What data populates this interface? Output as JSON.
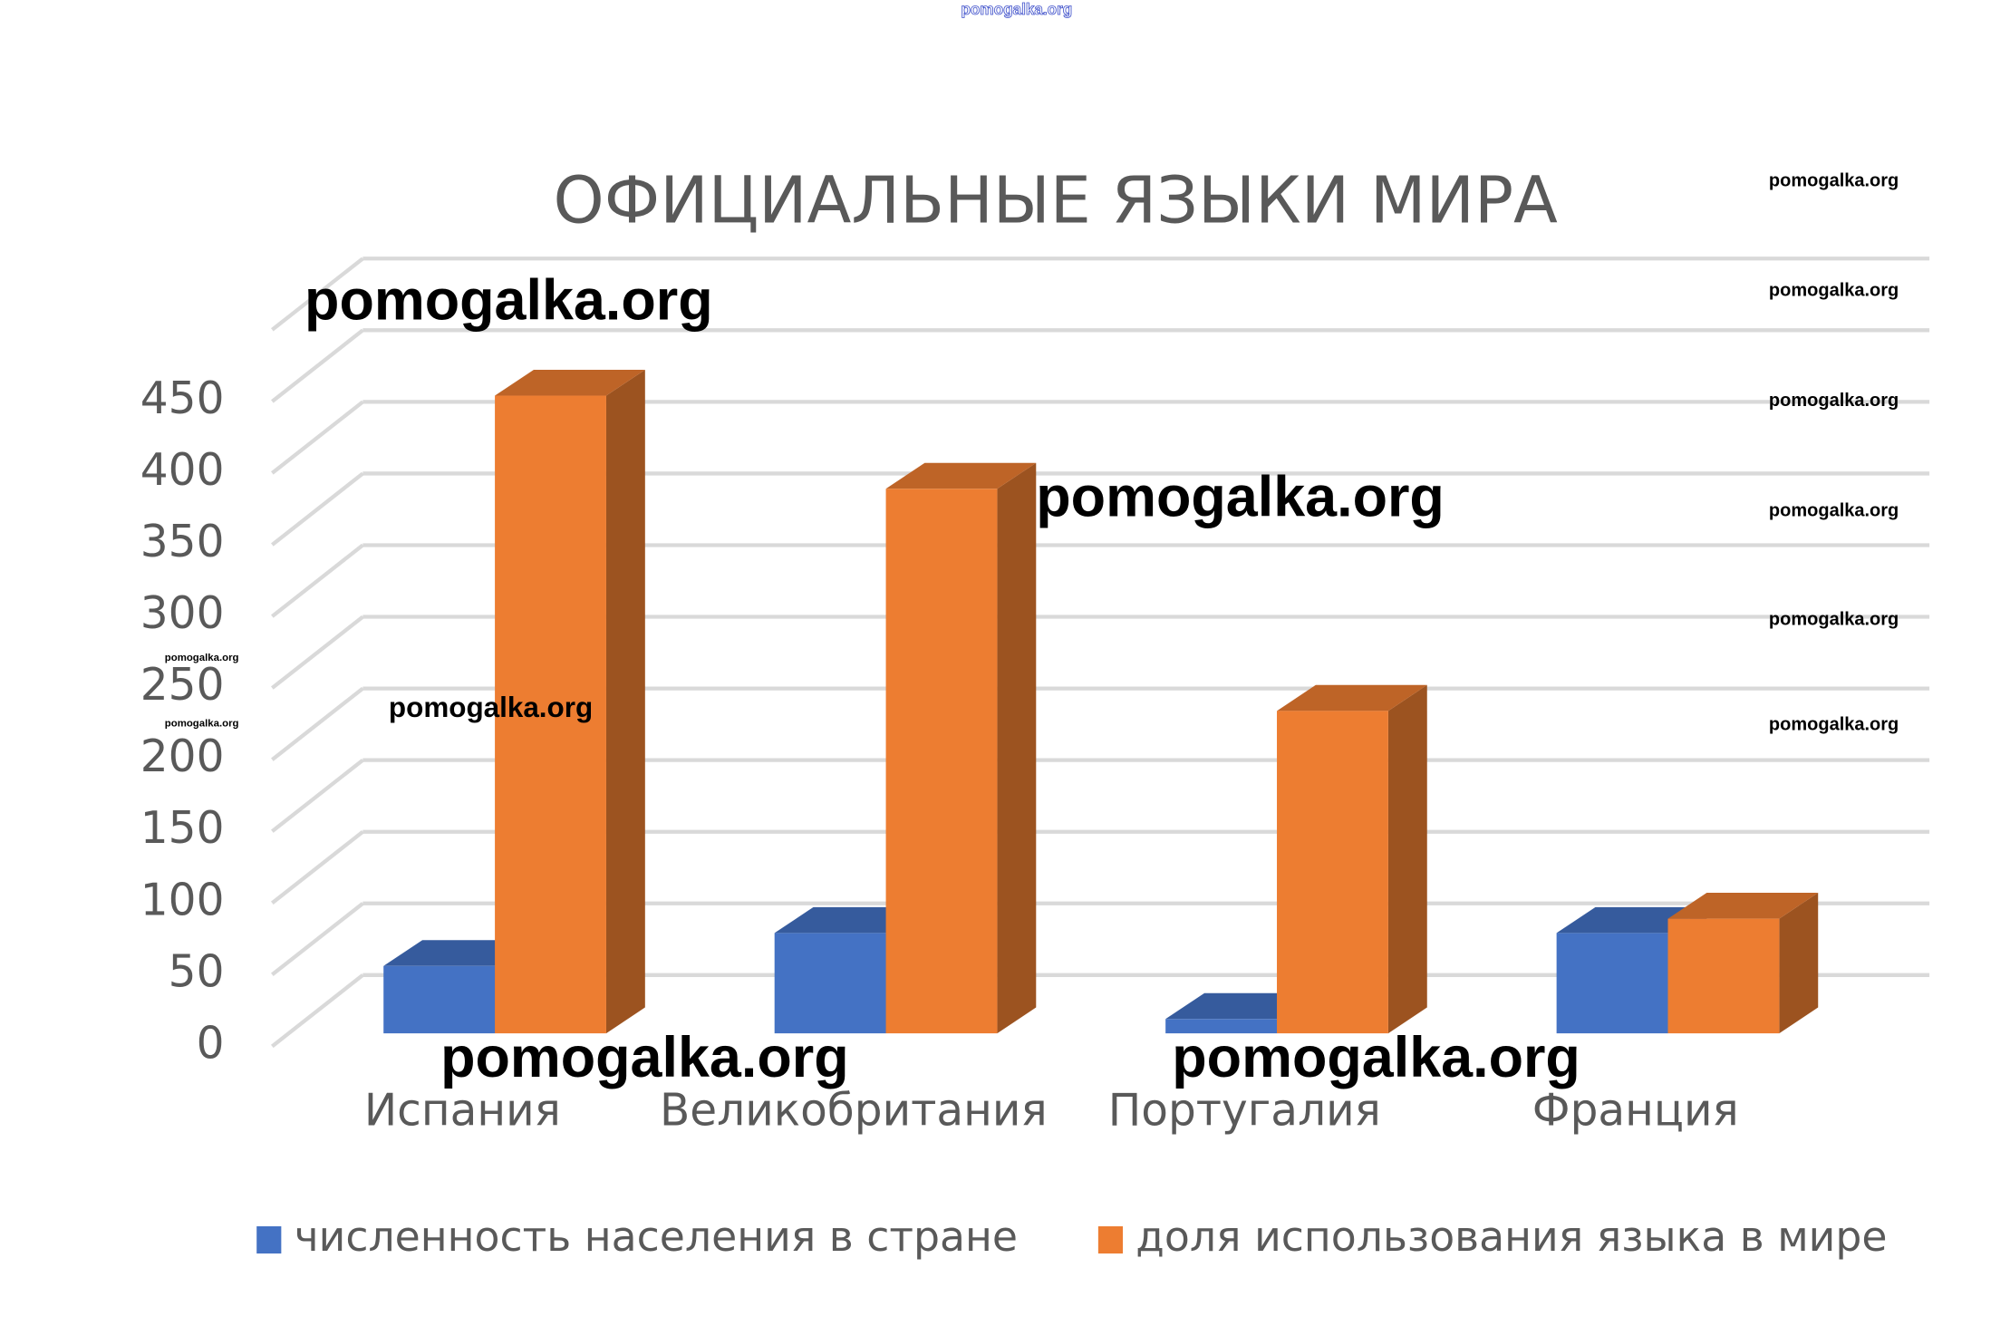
{
  "chart_data": {
    "type": "bar3d",
    "title": "ОФИЦИАЛЬНЫЕ ЯЗЫКИ МИРА",
    "categories": [
      "Испания",
      "Великобритания",
      "Португалия",
      "Франция"
    ],
    "series": [
      {
        "name": "численность населения в стране",
        "color": "#4472c4",
        "values": [
          47,
          70,
          10,
          70
        ]
      },
      {
        "name": "доля использования языка в мире",
        "color": "#ed7d31",
        "values": [
          445,
          380,
          225,
          80
        ]
      }
    ],
    "ylim": [
      0,
      500
    ],
    "yticks": [
      0,
      50,
      100,
      150,
      200,
      250,
      300,
      350,
      400,
      450
    ],
    "grid": true,
    "legend": "bottom"
  },
  "watermarks": [
    "pomogalka.org",
    "pomogalka.org",
    "pomogalka.org",
    "pomogalka.org",
    "pomogalka.org",
    "pomogalka.org",
    "pomogalka.org",
    "pomogalka.org",
    "pomogalka.org",
    "pomogalka.org",
    "pomogalka.org",
    "pomogalka.org",
    "pomogalka.org",
    "pomogalka.org"
  ]
}
